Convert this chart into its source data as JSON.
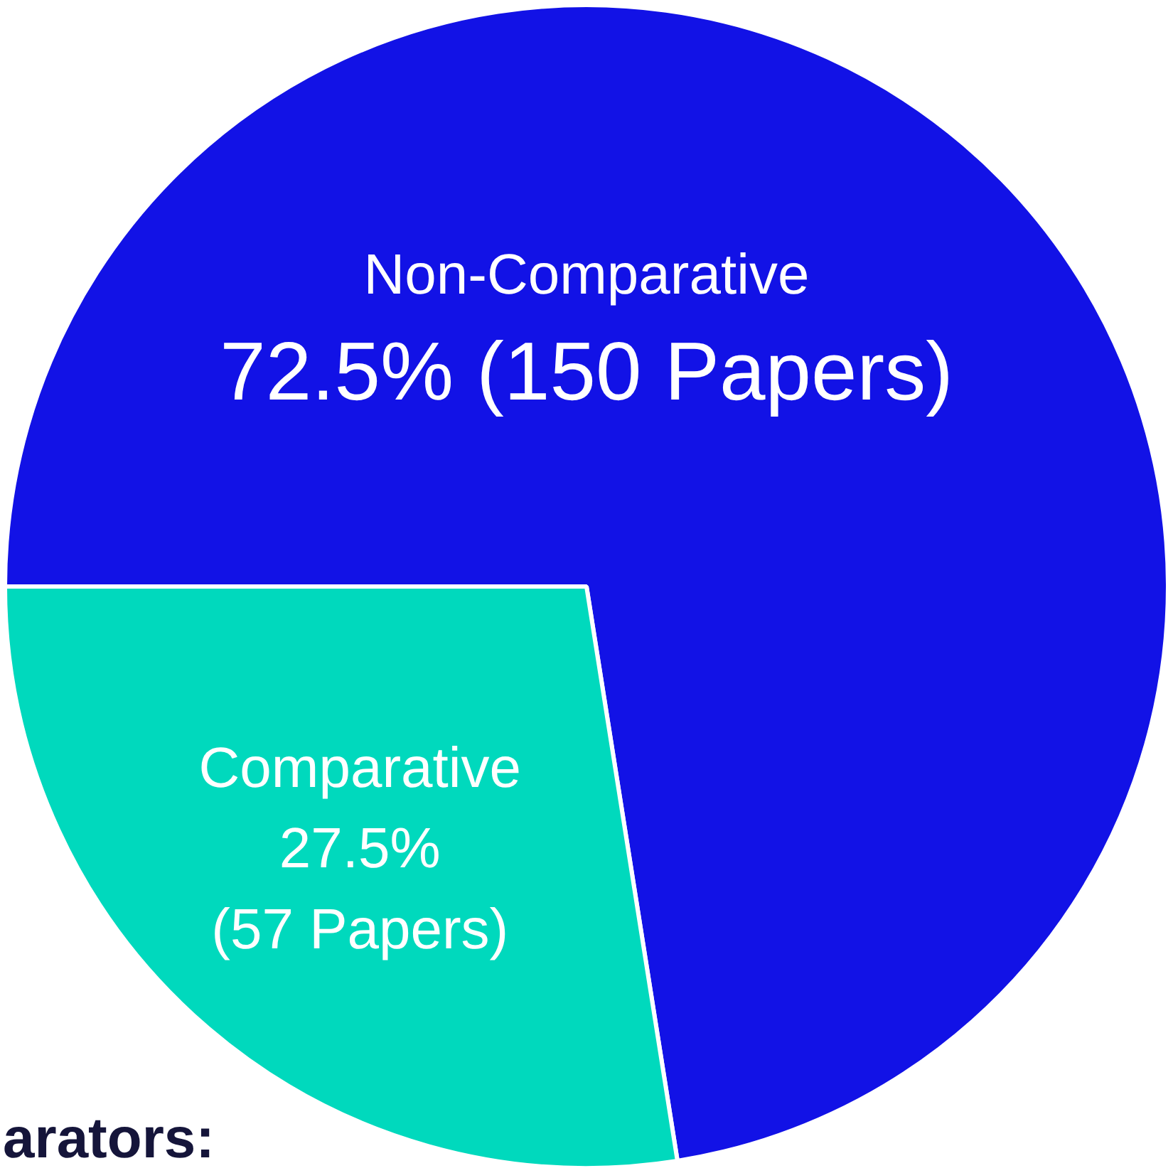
{
  "chart_data": {
    "type": "pie",
    "categories": [
      "Non-Comparative",
      "Comparative"
    ],
    "values": [
      72.5,
      27.5
    ],
    "colors": [
      "#1212e6",
      "#00d9bd"
    ],
    "value_labels": [
      "72.5% (150 Papers)",
      "27.5% (57 Papers)"
    ],
    "legend": false,
    "annotations": [
      "arators:"
    ]
  }
}
